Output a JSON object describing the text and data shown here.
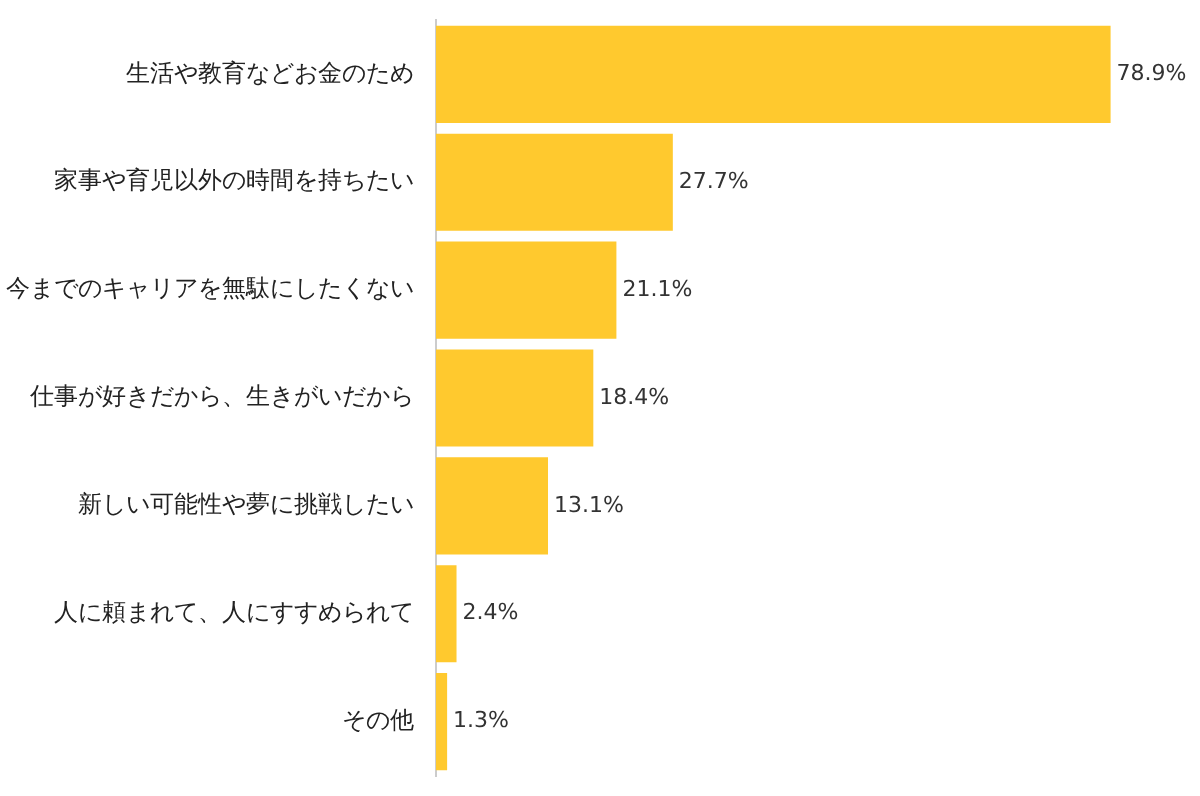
{
  "chart_data": {
    "type": "bar",
    "orientation": "horizontal",
    "categories": [
      "生活や教育などお金のため",
      "家事や育児以外の時間を持ちたい",
      "今までのキャリアを無駄にしたくない",
      "仕事が好きだから、生きがいだから",
      "新しい可能性や夢に挑戦したい",
      "人に頼まれて、人にすすめられて",
      "その他"
    ],
    "values": [
      78.9,
      27.7,
      21.1,
      18.4,
      13.1,
      2.4,
      1.3
    ],
    "value_labels": [
      "78.9%",
      "27.7%",
      "21.1%",
      "18.4%",
      "13.1%",
      "2.4%",
      "1.3%"
    ],
    "color": "#ffc92e"
  }
}
